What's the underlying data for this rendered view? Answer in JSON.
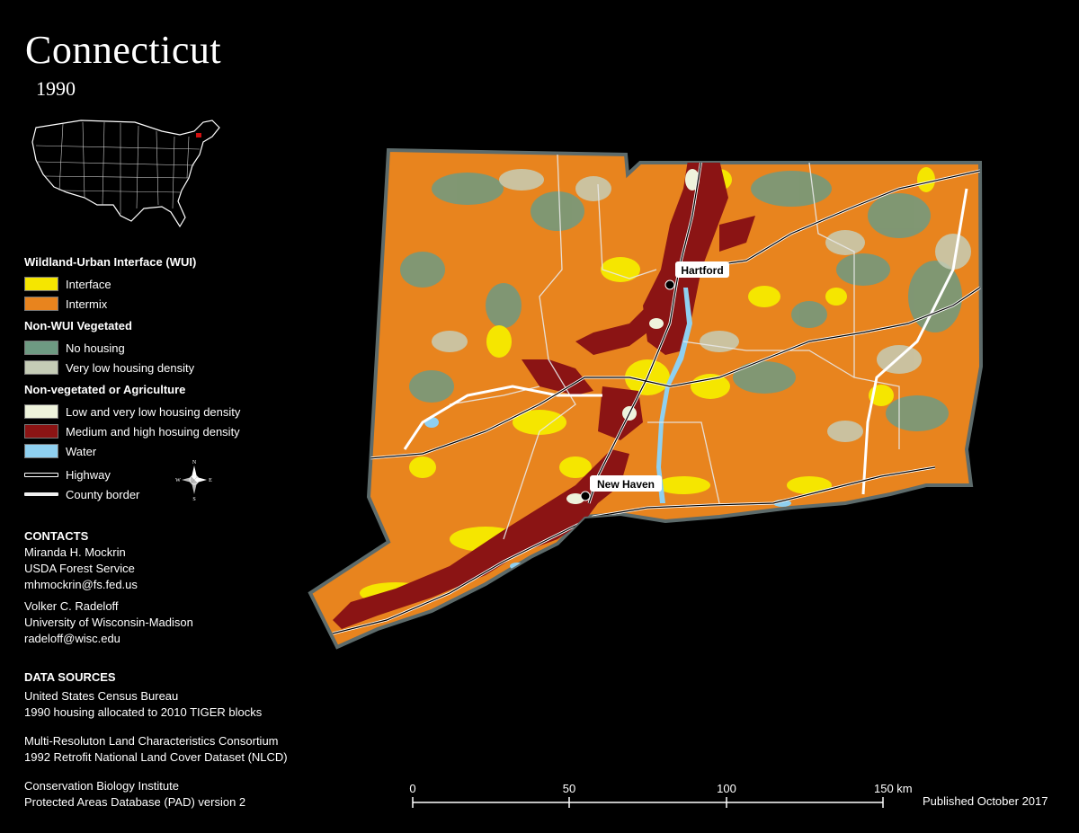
{
  "title": "Connecticut",
  "year": "1990",
  "legend": {
    "wui_heading": "Wildland-Urban Interface (WUI)",
    "interface": "Interface",
    "intermix": "Intermix",
    "nonwui_heading": "Non-WUI Vegetated",
    "no_housing": "No housing",
    "very_low": "Very low housing density",
    "nonveg_heading": "Non-vegetated or Agriculture",
    "low_very_low": "Low and very low housing density",
    "medium_high": "Medium and high hosuing density",
    "water": "Water",
    "highway": "Highway",
    "county_border": "County border"
  },
  "colors": {
    "interface": "#f5e600",
    "intermix": "#e8841e",
    "no_housing": "#6e9a82",
    "very_low": "#c5ccb6",
    "low_very_low": "#eef3dc",
    "medium_high": "#8b1414",
    "water": "#8fd0f0"
  },
  "compass": {
    "n": "N",
    "s": "S",
    "e": "E",
    "w": "W"
  },
  "contacts": {
    "heading": "CONTACTS",
    "person1_name": "Miranda H. Mockrin",
    "person1_org": "USDA Forest Service",
    "person1_email": "mhmockrin@fs.fed.us",
    "person2_name": "Volker C. Radeloff",
    "person2_org": "University of Wisconsin-Madison",
    "person2_email": "radeloff@wisc.edu"
  },
  "sources": {
    "heading": "DATA SOURCES",
    "s1_line1": "United States Census Bureau",
    "s1_line2": "1990 housing allocated to 2010 TIGER blocks",
    "s2_line1": "Multi-Resoluton Land Characteristics Consortium",
    "s2_line2": "1992 Retrofit National Land Cover Dataset (NLCD)",
    "s3_line1": "Conservation Biology Institute",
    "s3_line2": "Protected Areas Database (PAD) version 2"
  },
  "cities": {
    "hartford": "Hartford",
    "new_haven": "New Haven"
  },
  "scale": {
    "t0": "0",
    "t50": "50",
    "t100": "100",
    "t150": "150 km"
  },
  "published": "Published October 2017"
}
